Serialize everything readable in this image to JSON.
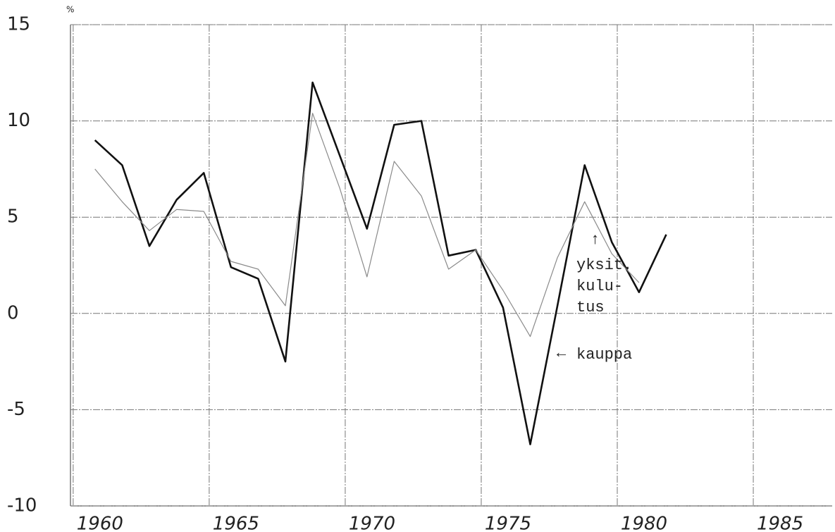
{
  "chart_data": {
    "type": "line",
    "unit_label": "%",
    "x": [
      1960.8,
      1961.8,
      1962.8,
      1963.8,
      1964.8,
      1965.8,
      1966.8,
      1967.8,
      1968.8,
      1969.8,
      1970.8,
      1971.8,
      1972.8,
      1973.8,
      1974.8,
      1975.8,
      1976.8,
      1977.8,
      1978.8,
      1979.8,
      1980.8,
      1981.8
    ],
    "series": [
      {
        "name": "kauppa",
        "color": "#111111",
        "width": 2.6,
        "values": [
          9.0,
          7.7,
          3.5,
          5.9,
          7.3,
          2.4,
          1.8,
          -2.5,
          12.0,
          8.2,
          4.4,
          9.8,
          10.0,
          3.0,
          3.3,
          0.3,
          -6.8,
          0.4,
          7.7,
          3.7,
          1.1,
          4.1
        ]
      },
      {
        "label_lines": [
          "yksit.",
          "kulu-",
          "tus"
        ],
        "color": "#8a8a8a",
        "width": 1.2,
        "values": [
          7.5,
          5.8,
          4.3,
          5.4,
          5.3,
          2.7,
          2.3,
          0.4,
          10.4,
          6.5,
          1.9,
          7.9,
          6.1,
          2.3,
          3.3,
          1.2,
          -1.2,
          2.9,
          5.8,
          3.1,
          1.6,
          null
        ]
      }
    ],
    "xlim": [
      1959.9,
      1987.9
    ],
    "xticks": [
      1960,
      1965,
      1970,
      1975,
      1980,
      1985
    ],
    "ylim": [
      -10,
      15
    ],
    "yticks": [
      15,
      10,
      5,
      0,
      -5,
      -10
    ],
    "grid": true
  }
}
